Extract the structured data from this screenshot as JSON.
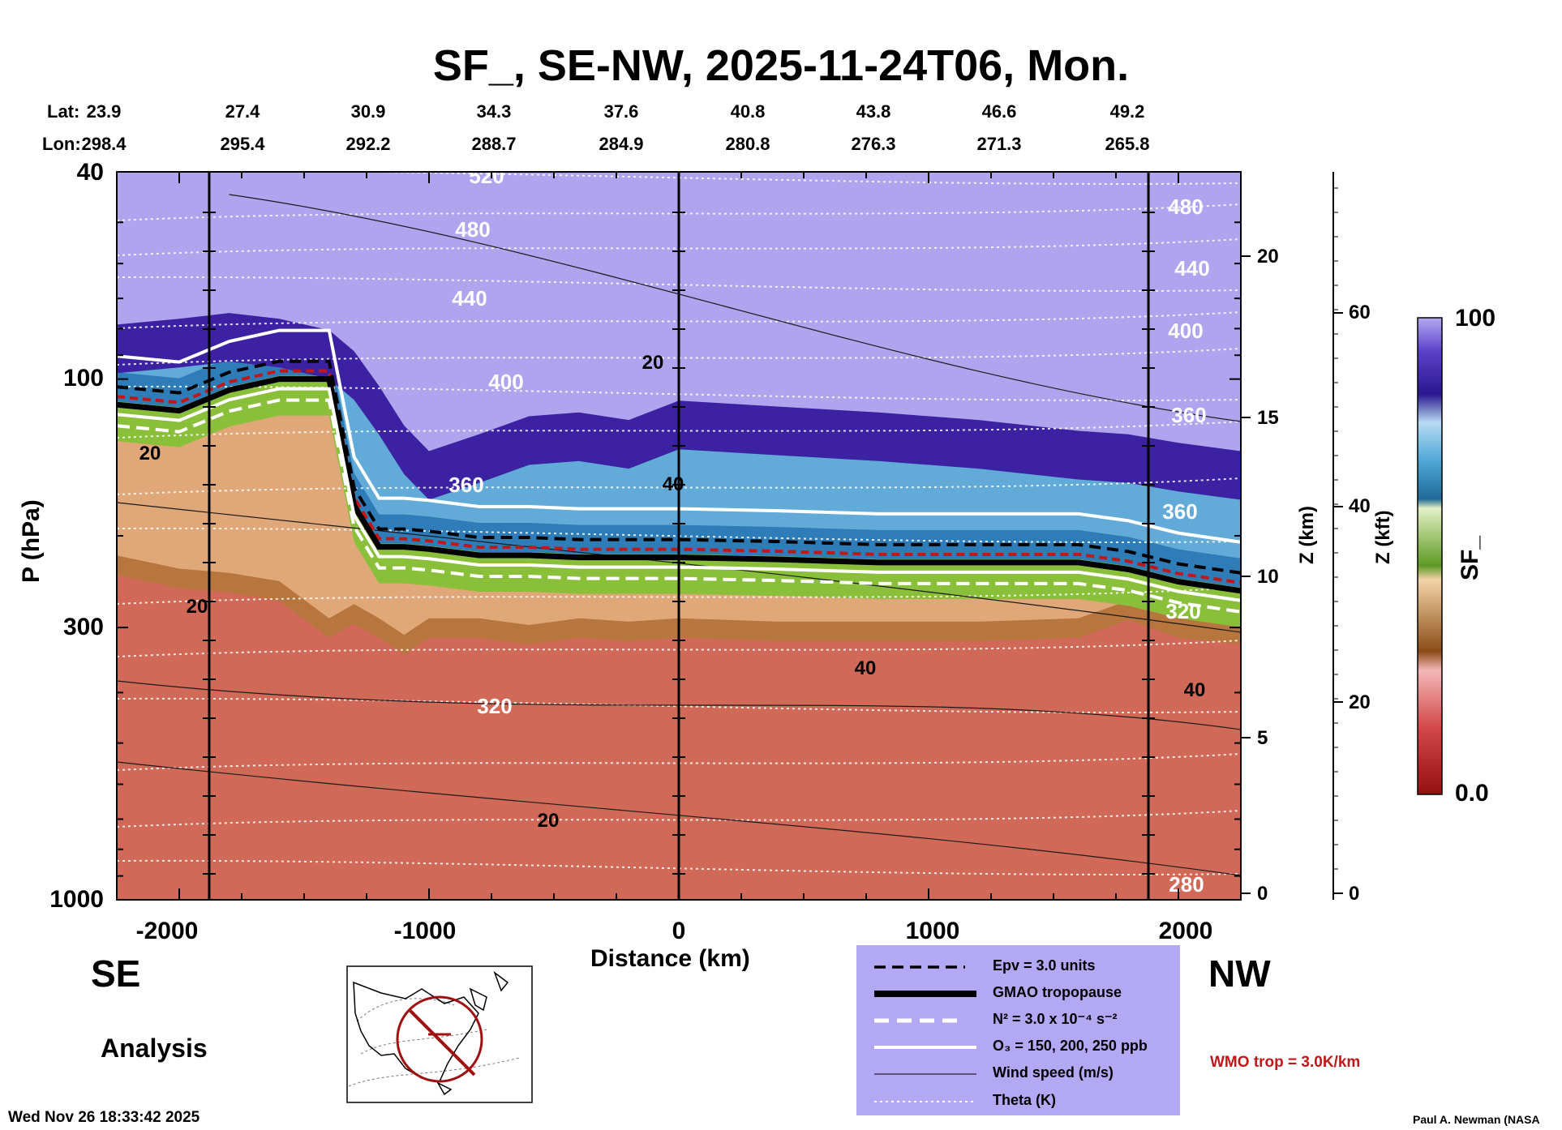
{
  "header": {
    "title": "SF_, SE-NW, 2025-11-24T06, Mon.",
    "lat_label": "Lat:",
    "lon_label": "Lon:",
    "lats": [
      "23.9",
      "27.4",
      "30.9",
      "34.3",
      "37.6",
      "40.8",
      "43.8",
      "46.6",
      "49.2"
    ],
    "lons": [
      "298.4",
      "295.4",
      "292.2",
      "288.7",
      "284.9",
      "280.8",
      "276.3",
      "271.3",
      "265.8"
    ]
  },
  "chart_data": {
    "type": "heatmap",
    "variable": "SF_",
    "xlabel": "Distance (km)",
    "ylabel": "P (hPa)",
    "zlabel_km": "Z (km)",
    "zlabel_kft": "Z (kft)",
    "xlim": [
      -2250,
      2250
    ],
    "ylim": [
      1000,
      40
    ],
    "x_ticks": [
      -2000,
      -1000,
      0,
      1000,
      2000
    ],
    "x_tick_labels": [
      "-2000",
      "-1000",
      "0",
      "1000",
      "2000"
    ],
    "y_ticks": [
      40,
      100,
      300,
      1000
    ],
    "y_tick_labels": [
      "40",
      "100",
      "300",
      "1000"
    ],
    "z_km_ticks": [
      "20",
      "15",
      "10",
      "5",
      "0"
    ],
    "z_kft_ticks": [
      "60",
      "40",
      "20",
      "0"
    ],
    "colorbar": {
      "label": "SF_",
      "min": "0.0",
      "max": "100"
    },
    "side_labels": {
      "left": "SE",
      "right": "NW",
      "mode": "Analysis"
    },
    "theta_labels": [
      "520",
      "480",
      "440",
      "400",
      "360",
      "320",
      "280"
    ],
    "wind_labels": [
      "20",
      "40"
    ],
    "field_profile": {
      "x_km": [
        -2250,
        -2000,
        -1800,
        -1600,
        -1400,
        -1300,
        -1200,
        -1100,
        -1000,
        -800,
        -600,
        -400,
        -200,
        0,
        400,
        800,
        1200,
        1600,
        1800,
        2000,
        2250
      ],
      "upper_layer_top_hPa": [
        80,
        78,
        76,
        78,
        82,
        90,
        105,
        125,
        140,
        130,
        120,
        118,
        122,
        112,
        115,
        118,
        122,
        128,
        130,
        135,
        140
      ],
      "tropopause_hPa": [
        112,
        115,
        105,
        100,
        100,
        175,
        210,
        210,
        212,
        218,
        218,
        220,
        220,
        220,
        222,
        225,
        225,
        225,
        232,
        245,
        255
      ],
      "surface_layer_top_hPa": [
        250,
        265,
        270,
        280,
        330,
        310,
        330,
        355,
        330,
        330,
        340,
        330,
        335,
        330,
        335,
        335,
        335,
        330,
        305,
        330,
        340
      ]
    },
    "legend": [
      "Epv = 3.0 units",
      "GMAO tropopause",
      "N² = 3.0 x 10⁻⁴ s⁻²",
      "O₃ = 150, 200, 250 ppb",
      "Wind speed (m/s)",
      "Theta (K)"
    ],
    "wmo_label": "WMO trop = 3.0K/km"
  },
  "footer": {
    "timestamp": "Wed Nov 26 18:33:42 2025",
    "credit": "Paul A. Newman (NASA"
  },
  "colors": {
    "violet": "#b0a4ee",
    "indigo": "#3c22a2",
    "blue": "#2f7db8",
    "cyan": "#9fd3ef",
    "green": "#8abf3a",
    "tan": "#e0a878",
    "brown": "#9c5a1d",
    "pink": "#e06a6a",
    "darkred": "#9e1212",
    "legend_bg": "#b3a8f3",
    "wmo_red": "#c01818"
  }
}
